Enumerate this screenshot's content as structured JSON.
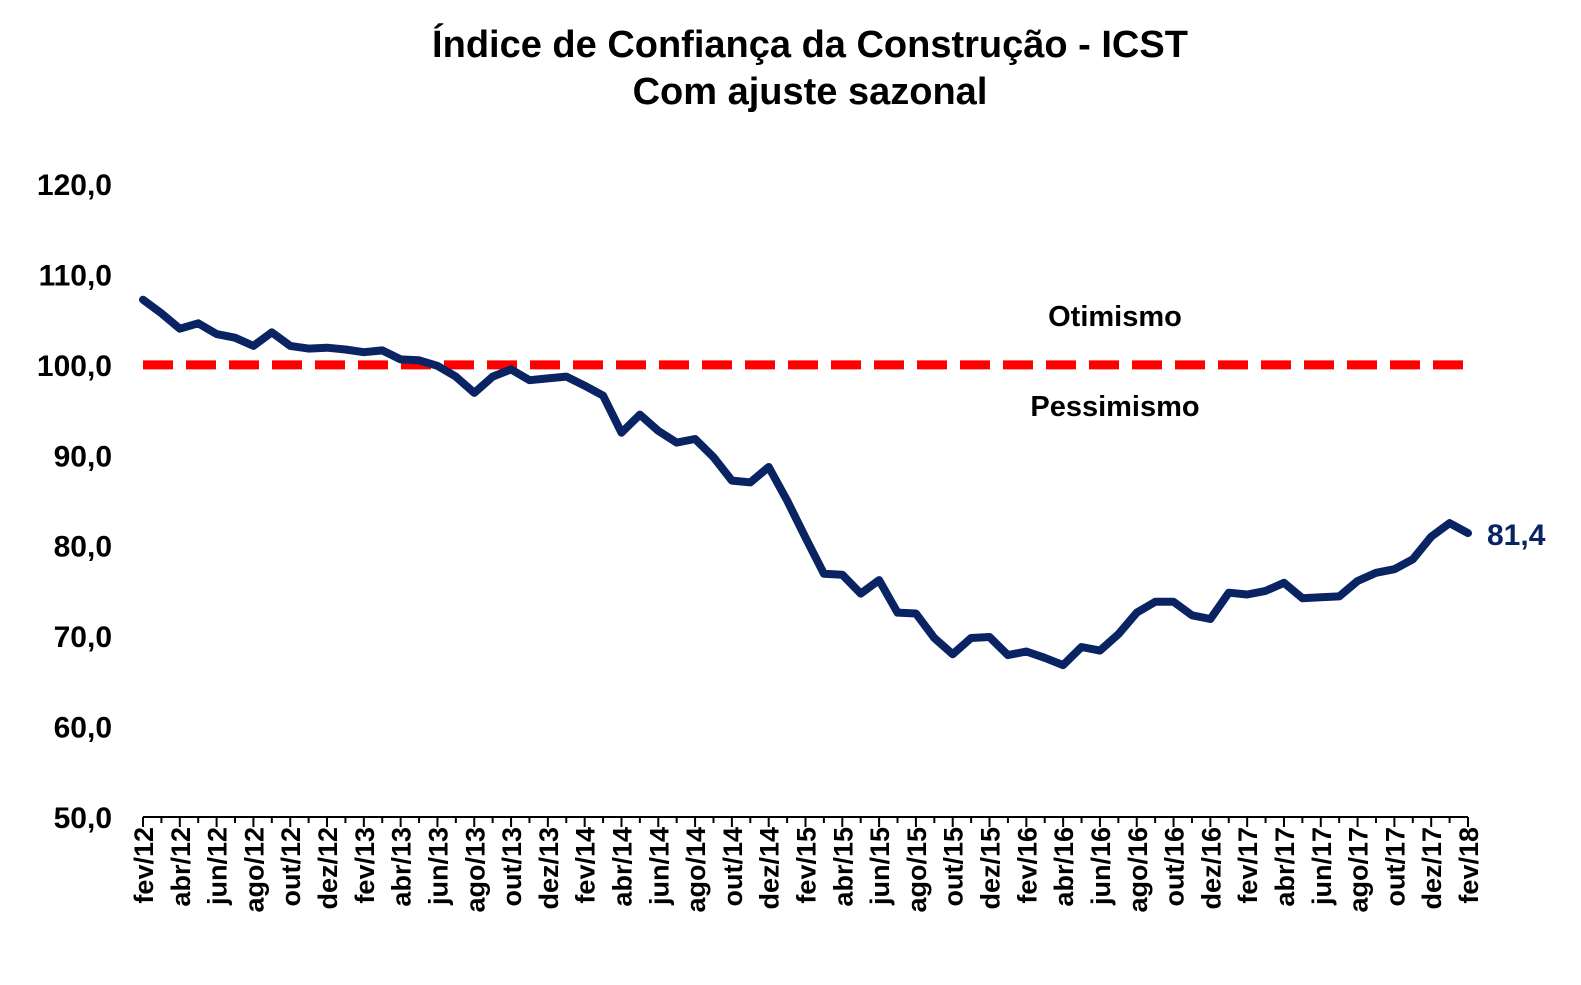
{
  "chart_data": {
    "type": "line",
    "title": "Índice de Confiança da Construção - ICST",
    "subtitle": "Com ajuste sazonal",
    "xlabel": "",
    "ylabel": "",
    "ylim": [
      50,
      120
    ],
    "yticks": [
      "50,0",
      "60,0",
      "70,0",
      "80,0",
      "90,0",
      "100,0",
      "110,0",
      "120,0"
    ],
    "ytick_values": [
      50,
      60,
      70,
      80,
      90,
      100,
      110,
      120
    ],
    "grid": false,
    "x": [
      "fev/12",
      "mar/12",
      "abr/12",
      "mai/12",
      "jun/12",
      "jul/12",
      "ago/12",
      "set/12",
      "out/12",
      "nov/12",
      "dez/12",
      "jan/13",
      "fev/13",
      "mar/13",
      "abr/13",
      "mai/13",
      "jun/13",
      "jul/13",
      "ago/13",
      "set/13",
      "out/13",
      "nov/13",
      "dez/13",
      "jan/14",
      "fev/14",
      "mar/14",
      "abr/14",
      "mai/14",
      "jun/14",
      "jul/14",
      "ago/14",
      "set/14",
      "out/14",
      "nov/14",
      "dez/14",
      "jan/15",
      "fev/15",
      "mar/15",
      "abr/15",
      "mai/15",
      "jun/15",
      "jul/15",
      "ago/15",
      "set/15",
      "out/15",
      "nov/15",
      "dez/15",
      "jan/16",
      "fev/16",
      "mar/16",
      "abr/16",
      "mai/16",
      "jun/16",
      "jul/16",
      "ago/16",
      "set/16",
      "out/16",
      "nov/16",
      "dez/16",
      "jan/17",
      "fev/17",
      "mar/17",
      "abr/17",
      "mai/17",
      "jun/17",
      "jul/17",
      "ago/17",
      "set/17",
      "out/17",
      "nov/17",
      "dez/17",
      "jan/18",
      "fev/18"
    ],
    "xtick_labels": [
      "fev/12",
      "abr/12",
      "jun/12",
      "ago/12",
      "out/12",
      "dez/12",
      "fev/13",
      "abr/13",
      "jun/13",
      "ago/13",
      "out/13",
      "dez/13",
      "fev/14",
      "abr/14",
      "jun/14",
      "ago/14",
      "out/14",
      "dez/14",
      "fev/15",
      "abr/15",
      "jun/15",
      "ago/15",
      "out/15",
      "dez/15",
      "fev/16",
      "abr/16",
      "jun/16",
      "ago/16",
      "out/16",
      "dez/16",
      "fev/17",
      "abr/17",
      "jun/17",
      "ago/17",
      "out/17",
      "dez/17",
      "fev/18"
    ],
    "series": [
      {
        "values": [
          107.2,
          105.7,
          104.0,
          104.6,
          103.4,
          103.0,
          102.1,
          103.6,
          102.1,
          101.8,
          101.9,
          101.7,
          101.4,
          101.6,
          100.6,
          100.5,
          99.9,
          98.7,
          96.9,
          98.7,
          99.5,
          98.3,
          98.5,
          98.7,
          97.7,
          96.6,
          92.5,
          94.5,
          92.7,
          91.4,
          91.8,
          89.8,
          87.2,
          87.0,
          88.7,
          85.0,
          80.9,
          76.9,
          76.8,
          74.7,
          76.2,
          72.6,
          72.5,
          69.8,
          68.0,
          69.8,
          69.9,
          67.9,
          68.3,
          67.6,
          66.8,
          68.8,
          68.4,
          70.2,
          72.6,
          73.8,
          73.8,
          72.3,
          71.9,
          74.8,
          74.6,
          75.0,
          75.9,
          74.2,
          74.3,
          74.4,
          76.1,
          77.0,
          77.4,
          78.5,
          81.0,
          82.5,
          81.4
        ],
        "color": "#0a2463"
      }
    ],
    "reference_line": {
      "value": 100.0,
      "color": "#ff0000",
      "style": "dashed"
    },
    "annotations": {
      "above": "Otimismo",
      "below": "Pessimismo"
    },
    "end_label": "81,4"
  }
}
